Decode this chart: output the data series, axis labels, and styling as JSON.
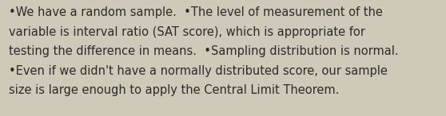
{
  "background_color": "#cec9b8",
  "text_color": "#2b2b2b",
  "font_size": 10.5,
  "lines": [
    "•We have a random sample.  •The level of measurement of the",
    "variable is interval ratio (SAT score), which is appropriate for",
    "testing the difference in means.  •Sampling distribution is normal.",
    "•Even if we didn't have a normally distributed score, our sample",
    "size is large enough to apply the Central Limit Theorem."
  ],
  "figwidth": 5.58,
  "figheight": 1.46,
  "dpi": 100
}
